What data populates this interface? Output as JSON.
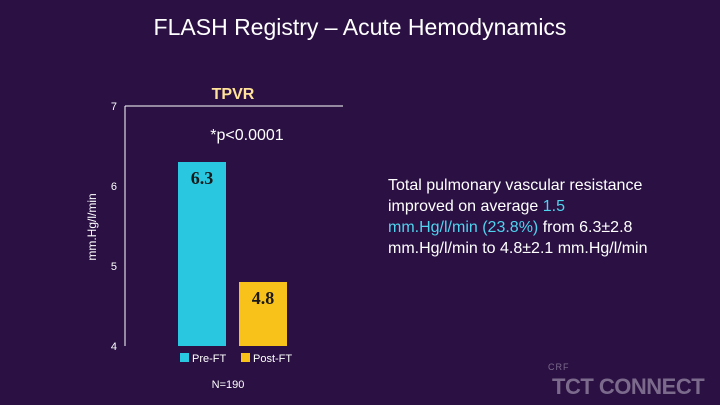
{
  "title": "FLASH Registry – Acute Hemodynamics",
  "side_text": {
    "part1": "Total pulmonary vascular resistance improved on average ",
    "highlight": "1.5 mm.Hg/l/min (23.8%)",
    "part2": " from 6.3±2.8 mm.Hg/l/min to 4.8±2.1 mm.Hg/l/min"
  },
  "logo": {
    "small": "CRF",
    "big": "TCT CONNECT"
  },
  "chart_data": {
    "type": "bar",
    "title": "TPVR",
    "annotation": "*p<0.0001",
    "categories": [
      "Pre-FT",
      "Post-FT"
    ],
    "values": [
      6.3,
      4.8
    ],
    "value_labels": [
      "6.3",
      "4.8"
    ],
    "colors": [
      "#29c8e0",
      "#f9c21b"
    ],
    "ylabel": "mm.Hg/l/min",
    "xlabel": "",
    "ylim": [
      4,
      7
    ],
    "yticks": [
      4,
      5,
      6,
      7
    ],
    "legend": [
      "Pre-FT",
      "Post-FT"
    ],
    "legend_position": "bottom",
    "note": "N=190",
    "grid": false
  }
}
